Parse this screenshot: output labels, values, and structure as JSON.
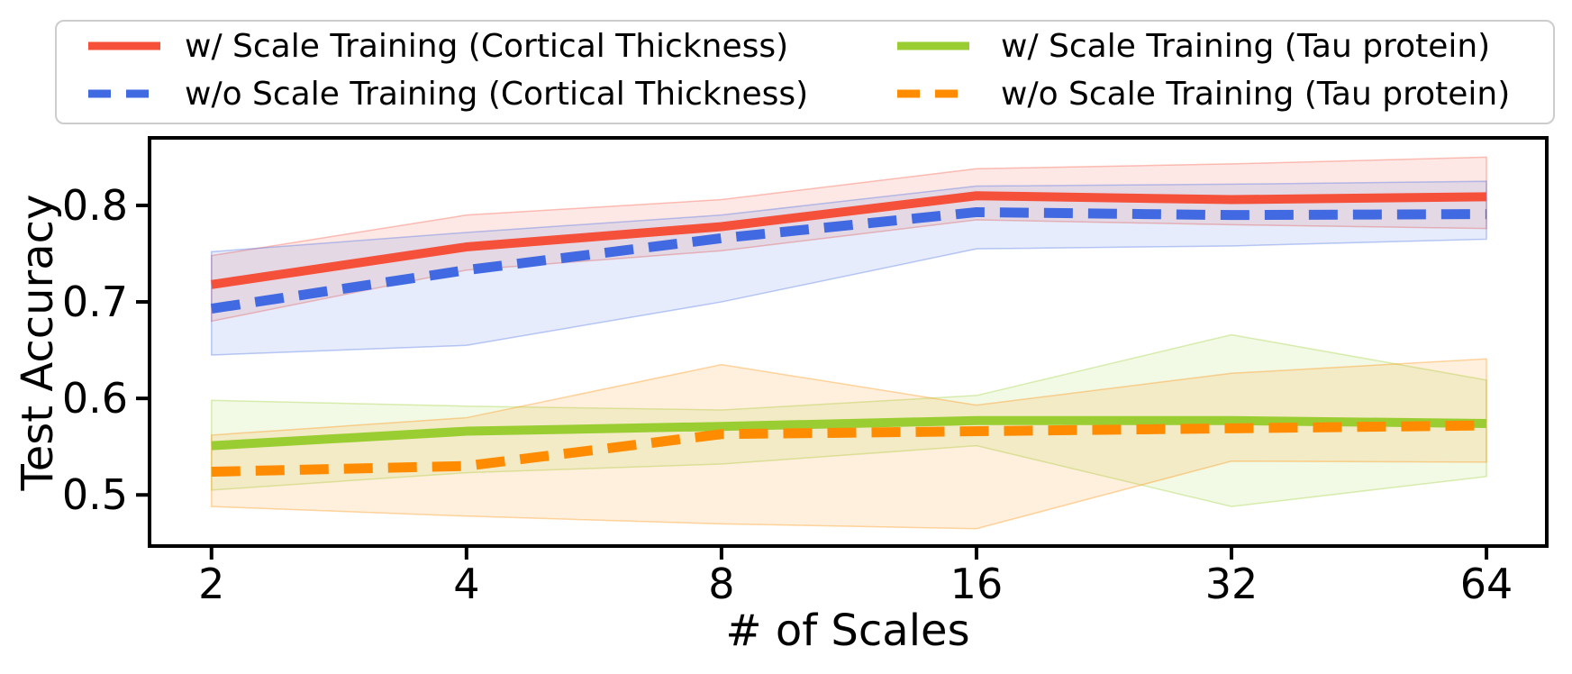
{
  "figure": {
    "background": "#ffffff",
    "frame_color": "#000000"
  },
  "chart_data": {
    "type": "line",
    "x": [
      2,
      4,
      8,
      16,
      32,
      64
    ],
    "x_scale": "log2",
    "xlabel": "# of Scales",
    "ylabel": "Test Accuracy",
    "xlim": [
      1.69,
      75.4
    ],
    "ylim": [
      0.447,
      0.87
    ],
    "xticks": [
      2,
      4,
      8,
      16,
      32,
      64
    ],
    "xtick_labels": [
      "2",
      "4",
      "8",
      "16",
      "32",
      "64"
    ],
    "yticks": [
      0.5,
      0.6,
      0.7,
      0.8
    ],
    "ytick_labels": [
      "0.5",
      "0.6",
      "0.7",
      "0.8"
    ],
    "grid": false,
    "legend_position": "top",
    "legend_columns": 2,
    "series": [
      {
        "id": "with-scale-training-cortical-thickness",
        "name": "w/ Scale Training (Cortical Thickness)",
        "color": "#f5503a",
        "style": "solid",
        "values": [
          0.718,
          0.757,
          0.778,
          0.81,
          0.806,
          0.809
        ],
        "band_low": [
          0.68,
          0.733,
          0.753,
          0.785,
          0.78,
          0.776
        ],
        "band_high": [
          0.748,
          0.79,
          0.806,
          0.838,
          0.843,
          0.85
        ]
      },
      {
        "id": "without-scale-training-cortical-thickness",
        "name": "w/o Scale Training (Cortical Thickness)",
        "color": "#4169e1",
        "style": "dashed",
        "values": [
          0.693,
          0.733,
          0.766,
          0.793,
          0.79,
          0.791
        ],
        "band_low": [
          0.645,
          0.655,
          0.7,
          0.755,
          0.758,
          0.765
        ],
        "band_high": [
          0.752,
          0.772,
          0.79,
          0.82,
          0.822,
          0.825
        ]
      },
      {
        "id": "with-scale-training-tau-protein",
        "name": "w/ Scale Training (Tau protein)",
        "color": "#9acd32",
        "style": "solid",
        "values": [
          0.551,
          0.566,
          0.571,
          0.577,
          0.577,
          0.574
        ],
        "band_low": [
          0.505,
          0.523,
          0.532,
          0.551,
          0.488,
          0.519
        ],
        "band_high": [
          0.598,
          0.592,
          0.588,
          0.603,
          0.666,
          0.619
        ]
      },
      {
        "id": "without-scale-training-tau-protein",
        "name": "w/o Scale Training (Tau protein)",
        "color": "#ff8c00",
        "style": "dashed",
        "values": [
          0.524,
          0.53,
          0.563,
          0.566,
          0.569,
          0.572
        ],
        "band_low": [
          0.488,
          0.478,
          0.47,
          0.465,
          0.535,
          0.534
        ],
        "band_high": [
          0.562,
          0.58,
          0.635,
          0.593,
          0.626,
          0.641
        ]
      }
    ],
    "legend_border_color": "#cccccc",
    "text_color": "#000000"
  }
}
